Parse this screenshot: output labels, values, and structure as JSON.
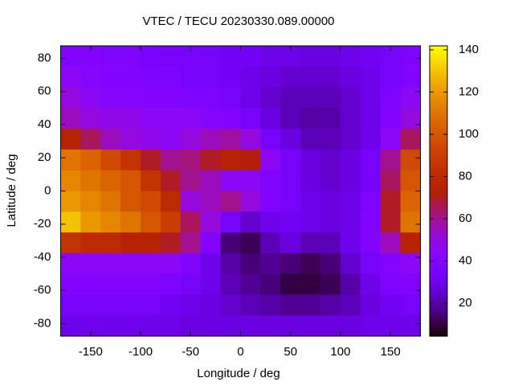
{
  "chart_data": {
    "type": "heatmap",
    "title": "VTEC / TECU 20230330.089.00000",
    "xlabel": "Longitude / deg",
    "ylabel": "Latitude / deg",
    "xedges": [
      -180,
      -160,
      -140,
      -120,
      -100,
      -80,
      -60,
      -40,
      -20,
      0,
      20,
      40,
      60,
      80,
      100,
      120,
      140,
      160,
      180
    ],
    "yedges": [
      87.5,
      75,
      62.5,
      50,
      37.5,
      25,
      12.5,
      0,
      -12.5,
      -25,
      -37.5,
      -50,
      -62.5,
      -75,
      -87.5
    ],
    "z": [
      [
        40,
        40,
        38,
        38,
        36,
        35,
        35,
        35,
        33,
        33,
        30,
        30,
        28,
        28,
        30,
        32,
        35,
        38
      ],
      [
        45,
        42,
        40,
        40,
        38,
        38,
        35,
        35,
        33,
        30,
        28,
        25,
        25,
        25,
        28,
        30,
        35,
        40
      ],
      [
        50,
        45,
        42,
        42,
        40,
        40,
        38,
        38,
        35,
        30,
        25,
        22,
        22,
        22,
        25,
        30,
        38,
        45
      ],
      [
        55,
        50,
        48,
        48,
        45,
        45,
        45,
        42,
        40,
        35,
        28,
        22,
        20,
        20,
        25,
        30,
        40,
        50
      ],
      [
        75,
        65,
        55,
        50,
        48,
        45,
        50,
        55,
        58,
        50,
        35,
        28,
        22,
        22,
        25,
        30,
        45,
        65
      ],
      [
        110,
        105,
        95,
        85,
        70,
        60,
        62,
        70,
        75,
        72,
        45,
        35,
        28,
        25,
        28,
        35,
        60,
        95
      ],
      [
        115,
        110,
        105,
        100,
        85,
        70,
        60,
        55,
        45,
        45,
        40,
        35,
        28,
        25,
        28,
        35,
        65,
        100
      ],
      [
        120,
        115,
        110,
        100,
        95,
        80,
        50,
        55,
        60,
        50,
        40,
        35,
        30,
        28,
        30,
        38,
        70,
        105
      ],
      [
        130,
        120,
        115,
        110,
        100,
        90,
        65,
        50,
        35,
        25,
        30,
        32,
        30,
        28,
        30,
        40,
        70,
        110
      ],
      [
        85,
        80,
        80,
        75,
        75,
        70,
        60,
        40,
        15,
        12,
        22,
        28,
        22,
        22,
        30,
        40,
        55,
        75
      ],
      [
        45,
        45,
        45,
        45,
        45,
        45,
        40,
        30,
        20,
        15,
        18,
        15,
        12,
        15,
        25,
        35,
        40,
        45
      ],
      [
        40,
        40,
        40,
        40,
        40,
        38,
        35,
        30,
        22,
        18,
        15,
        10,
        10,
        12,
        20,
        30,
        38,
        40
      ],
      [
        35,
        35,
        35,
        35,
        35,
        32,
        30,
        28,
        25,
        22,
        20,
        18,
        18,
        20,
        22,
        28,
        32,
        35
      ],
      [
        30,
        30,
        30,
        30,
        30,
        30,
        28,
        28,
        28,
        28,
        28,
        28,
        28,
        28,
        28,
        30,
        30,
        30
      ]
    ],
    "xlim": [
      -180,
      180
    ],
    "ylim": [
      -87.5,
      87.5
    ],
    "xticks": [
      -150,
      -100,
      -50,
      0,
      50,
      100,
      150
    ],
    "yticks": [
      -80,
      -60,
      -40,
      -20,
      0,
      20,
      40,
      60,
      80
    ],
    "cblim": [
      4.4,
      141.9
    ],
    "cbticks": [
      20,
      40,
      60,
      80,
      100,
      120,
      140
    ],
    "palette": "rgbformulae 7,5,15"
  }
}
